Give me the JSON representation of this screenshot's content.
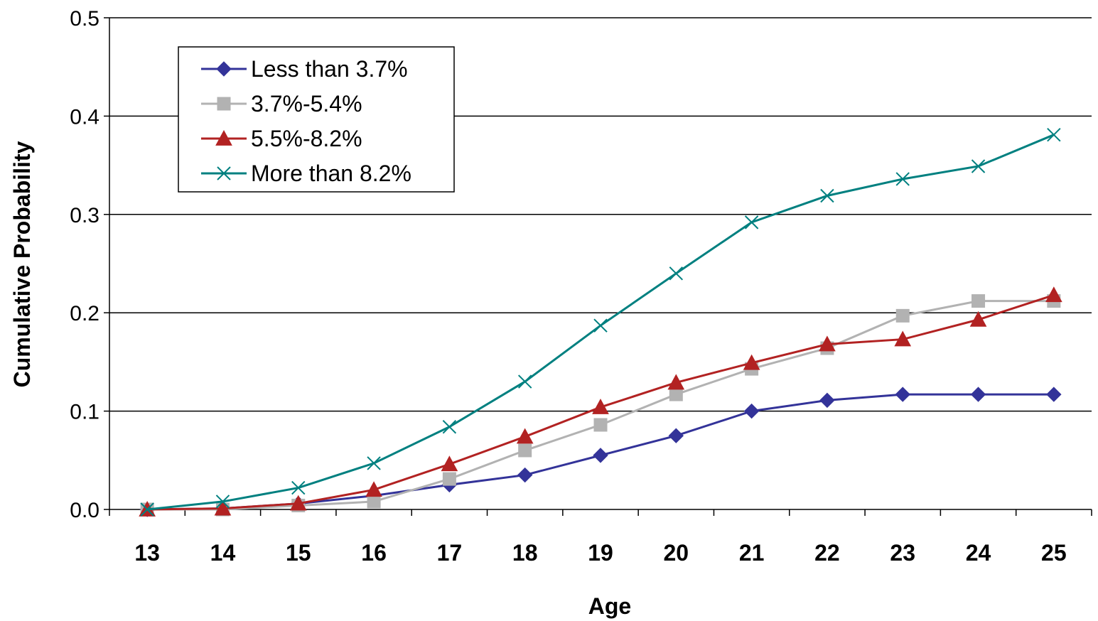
{
  "chart_data": {
    "type": "line",
    "xlabel": "Age",
    "ylabel": "Cumulative Probability",
    "categories": [
      "13",
      "14",
      "15",
      "16",
      "17",
      "18",
      "19",
      "20",
      "21",
      "22",
      "23",
      "24",
      "25"
    ],
    "ylim": [
      0,
      0.5
    ],
    "yticks": [
      0.0,
      0.1,
      0.2,
      0.3,
      0.4,
      0.5
    ],
    "ytick_labels": [
      "0.0",
      "0.1",
      "0.2",
      "0.3",
      "0.4",
      "0.5"
    ],
    "grid": "horizontal",
    "legend_position": "top-left",
    "series": [
      {
        "name": "Less than 3.7%",
        "color": "#333399",
        "marker": "diamond",
        "values": [
          0.0,
          0.001,
          0.006,
          0.014,
          0.025,
          0.035,
          0.055,
          0.075,
          0.1,
          0.111,
          0.117,
          0.117,
          0.117
        ]
      },
      {
        "name": "3.7%-5.4%",
        "color": "#b2b2b2",
        "marker": "square",
        "values": [
          0.0,
          0.0,
          0.004,
          0.008,
          0.031,
          0.06,
          0.086,
          0.117,
          0.143,
          0.164,
          0.197,
          0.212,
          0.212
        ]
      },
      {
        "name": "5.5%-8.2%",
        "color": "#b22222",
        "marker": "triangle",
        "values": [
          0.0,
          0.001,
          0.006,
          0.02,
          0.046,
          0.074,
          0.104,
          0.129,
          0.149,
          0.168,
          0.173,
          0.193,
          0.218
        ]
      },
      {
        "name": "More than 8.2%",
        "color": "#008080",
        "marker": "x",
        "values": [
          0.0,
          0.008,
          0.022,
          0.047,
          0.084,
          0.13,
          0.187,
          0.24,
          0.292,
          0.319,
          0.336,
          0.349,
          0.381
        ]
      }
    ]
  }
}
